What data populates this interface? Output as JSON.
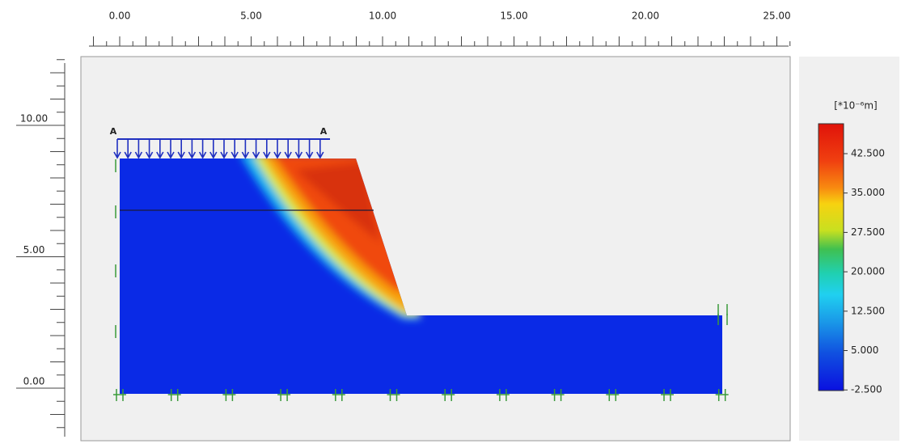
{
  "top_ruler": {
    "labels": [
      "0.00",
      "5.00",
      "10.00",
      "15.00",
      "20.00",
      "25.00"
    ]
  },
  "left_ruler": {
    "labels": [
      "10.00",
      "5.00",
      "0.00"
    ]
  },
  "load_labels": [
    "A",
    "A"
  ],
  "legend": {
    "unit": "[*10⁻⁶m]",
    "labels": [
      "42.500",
      "35.000",
      "27.500",
      "20.000",
      "12.500",
      "5.000",
      "-2.500"
    ]
  }
}
